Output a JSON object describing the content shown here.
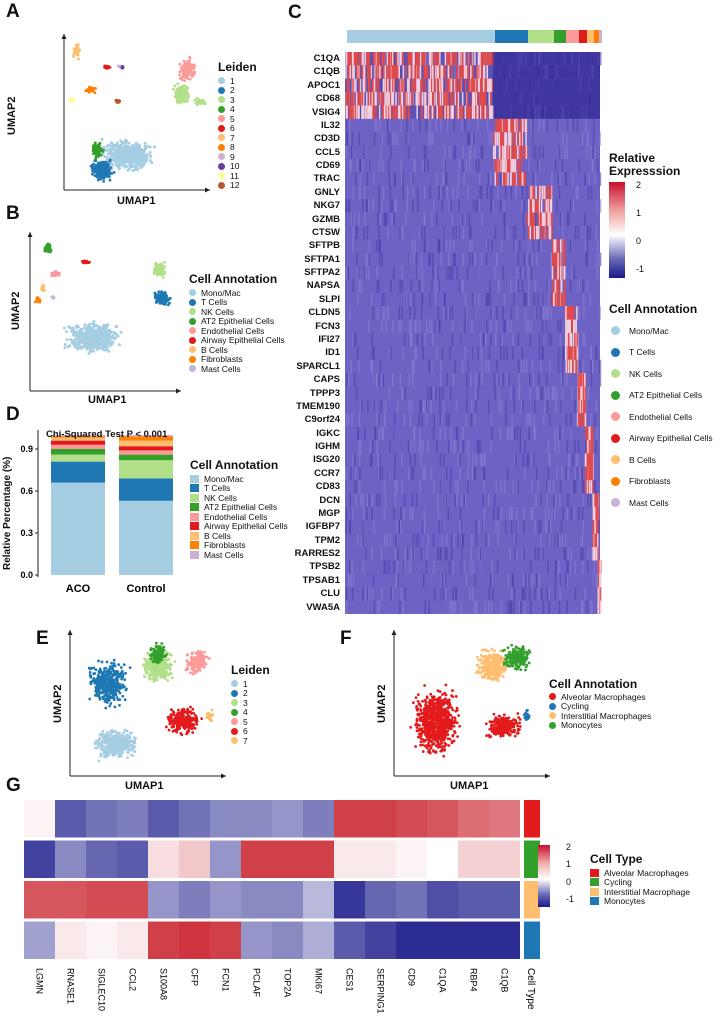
{
  "panels": {
    "a": "A",
    "b": "B",
    "c": "C",
    "d": "D",
    "e": "E",
    "f": "F",
    "g": "G"
  },
  "axes": {
    "umap1": "UMAP1",
    "umap2": "UMAP2"
  },
  "panelA": {
    "legend_title": "Leiden",
    "items": [
      "1",
      "2",
      "3",
      "4",
      "5",
      "6",
      "7",
      "8",
      "9",
      "10",
      "11",
      "12"
    ],
    "colors": [
      "#a6cee3",
      "#1f78b4",
      "#b2df8a",
      "#33a02c",
      "#fb9a99",
      "#e31a1c",
      "#fdbf6f",
      "#ff7f00",
      "#cab2d6",
      "#6a3d9a",
      "#ffff99",
      "#b15928"
    ]
  },
  "cellAnnotation": {
    "title": "Cell Annotation",
    "items": [
      "Mono/Mac",
      "T Cells",
      "NK Cells",
      "AT2 Epithelial Cells",
      "Endothelial Cells",
      "Airway Epithelial Cells",
      "B Cells",
      "Fibroblasts",
      "Mast Cells"
    ],
    "colors": [
      "#a6cee3",
      "#1f78b4",
      "#b2df8a",
      "#33a02c",
      "#fb9a99",
      "#e31a1c",
      "#fdbf6f",
      "#ff7f00",
      "#cab2d6"
    ]
  },
  "panelC": {
    "legend_title": "Relative\nExpresssion",
    "scale": [
      "2",
      "1",
      "0",
      "-1"
    ],
    "genes": [
      "C1QA",
      "C1QB",
      "APOC1",
      "CD68",
      "VSIG4",
      "IL32",
      "CD3D",
      "CCL5",
      "CD69",
      "TRAC",
      "GNLY",
      "NKG7",
      "GZMB",
      "CTSW",
      "SFTPB",
      "SFTPA1",
      "SFTPA2",
      "NAPSA",
      "SLPI",
      "CLDN5",
      "FCN3",
      "IFI27",
      "ID1",
      "SPARCL1",
      "CAPS",
      "TPPP3",
      "TMEM190",
      "C9orf24",
      "IGKC",
      "IGHM",
      "ISG20",
      "CCR7",
      "CD83",
      "DCN",
      "MGP",
      "IGFBP7",
      "TPM2",
      "RARRES2",
      "TPSB2",
      "TPSAB1",
      "CLU",
      "VWA5A"
    ],
    "bar_widths": [
      0.58,
      0.13,
      0.1,
      0.05,
      0.05,
      0.03,
      0.03,
      0.02,
      0.01
    ]
  },
  "chart_data": {
    "type": "bar",
    "title": "Chi-Squared Test P < 0.001",
    "xlabel": "",
    "ylabel": "Relative Percentage (%)",
    "ylim": [
      0,
      1
    ],
    "yticks": [
      "0.0",
      "0.3",
      "0.6",
      "0.9"
    ],
    "categories": [
      "ACO",
      "Control"
    ],
    "series": [
      {
        "name": "Mono/Mac",
        "values": [
          0.66,
          0.53
        ]
      },
      {
        "name": "T Cells",
        "values": [
          0.15,
          0.16
        ]
      },
      {
        "name": "NK Cells",
        "values": [
          0.05,
          0.13
        ]
      },
      {
        "name": "AT2 Epithelial Cells",
        "values": [
          0.04,
          0.04
        ]
      },
      {
        "name": "Endothelial Cells",
        "values": [
          0.03,
          0.03
        ]
      },
      {
        "name": "Airway Epithelial Cells",
        "values": [
          0.03,
          0.03
        ]
      },
      {
        "name": "B Cells",
        "values": [
          0.02,
          0.04
        ]
      },
      {
        "name": "Fibroblasts",
        "values": [
          0.01,
          0.03
        ]
      },
      {
        "name": "Mast Cells",
        "values": [
          0.01,
          0.01
        ]
      }
    ]
  },
  "panelE": {
    "legend_title": "Leiden",
    "items": [
      "1",
      "2",
      "3",
      "4",
      "5",
      "6",
      "7"
    ],
    "colors": [
      "#a6cee3",
      "#1f78b4",
      "#b2df8a",
      "#33a02c",
      "#fb9a99",
      "#e31a1c",
      "#fdbf6f"
    ]
  },
  "panelF": {
    "legend_title": "Cell Annotation",
    "items": [
      "Alveolar Macrophages",
      "Cycling",
      "Interstitial Macrophages",
      "Monocytes"
    ],
    "colors": [
      "#e31a1c",
      "#1f78b4",
      "#fdbf6f",
      "#33a02c"
    ]
  },
  "panelG": {
    "genes": [
      "LGMN",
      "RNASE1",
      "SIGLEC10",
      "CCL2",
      "S100A8",
      "CFP",
      "FCN1",
      "PCLAF",
      "TOP2A",
      "MKI67",
      "CES1",
      "SERPING1",
      "CD9",
      "C1QA",
      "RBP4",
      "C1QB"
    ],
    "celltype_label": "Cell Type",
    "legend_title": "Cell Type",
    "legend_items": [
      "Alveolar Macrophages",
      "Cycling",
      "Interstitial Macrophage",
      "Monocytes"
    ],
    "legend_colors": [
      "#e31a1c",
      "#33a02c",
      "#fdbf6f",
      "#1f78b4"
    ],
    "row_colors": [
      "#e31a1c",
      "#33a02c",
      "#fdbf6f",
      "#1f78b4"
    ],
    "scale": [
      "2",
      "1",
      "0",
      "-1"
    ],
    "values": [
      [
        0.1,
        -1.4,
        -1.2,
        -1.1,
        -1.4,
        -1.2,
        -1.0,
        -1.0,
        -0.9,
        -1.1,
        1.7,
        1.7,
        1.6,
        1.5,
        1.3,
        1.2
      ],
      [
        -1.6,
        -1.0,
        -1.3,
        -1.4,
        0.3,
        0.5,
        -0.9,
        1.7,
        1.7,
        1.7,
        0.2,
        0.2,
        0.1,
        0.0,
        0.4,
        0.4
      ],
      [
        1.5,
        1.5,
        1.6,
        1.6,
        -0.9,
        -1.1,
        -0.9,
        -1.0,
        -1.0,
        -0.6,
        -1.7,
        -1.3,
        -1.2,
        -1.5,
        -1.4,
        -1.4
      ],
      [
        -0.8,
        0.2,
        0.1,
        0.2,
        1.7,
        1.8,
        1.7,
        -0.9,
        -1.0,
        -0.7,
        -1.4,
        -1.6,
        -1.8,
        -1.8,
        -1.8,
        -1.8
      ]
    ]
  }
}
